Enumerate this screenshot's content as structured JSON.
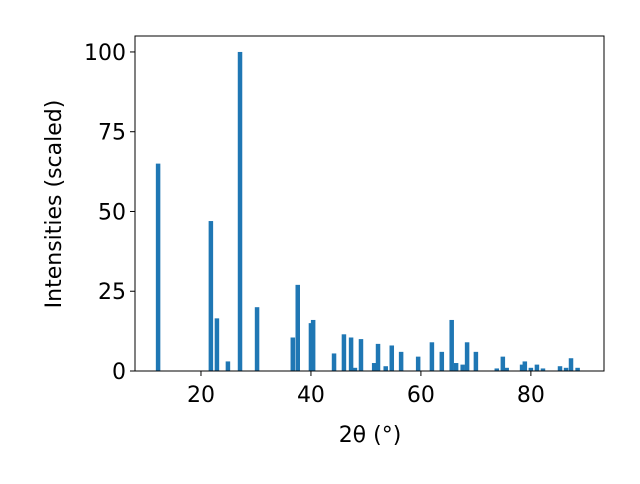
{
  "chart_data": {
    "type": "bar",
    "xlabel": "2θ (°)",
    "ylabel": "Intensities (scaled)",
    "x": [
      12.2,
      21.8,
      22.9,
      24.9,
      27.1,
      30.2,
      36.7,
      37.6,
      40.0,
      40.4,
      44.2,
      46.0,
      47.3,
      48.0,
      49.1,
      51.5,
      52.2,
      53.6,
      54.7,
      56.4,
      59.5,
      62.0,
      63.8,
      65.6,
      66.4,
      67.6,
      68.4,
      70.0,
      73.8,
      74.9,
      75.6,
      78.4,
      78.9,
      80.0,
      81.1,
      82.2,
      85.3,
      86.4,
      87.3,
      88.5
    ],
    "values": [
      65,
      47,
      16.5,
      3,
      100,
      20,
      10.5,
      27,
      15,
      16,
      5.5,
      11.5,
      10.5,
      1,
      10,
      2.5,
      8.5,
      1.5,
      8,
      6,
      4.5,
      9,
      6,
      16,
      2.5,
      2,
      9,
      6,
      0.8,
      4.5,
      1,
      2,
      3,
      1,
      2,
      0.8,
      1.5,
      1,
      4,
      1
    ],
    "color": "#1f77b4",
    "xlim": [
      8.0,
      93.3
    ],
    "ylim": [
      0,
      105
    ],
    "xticks": [
      20,
      40,
      60,
      80
    ],
    "yticks": [
      0,
      25,
      50,
      75,
      100
    ]
  }
}
